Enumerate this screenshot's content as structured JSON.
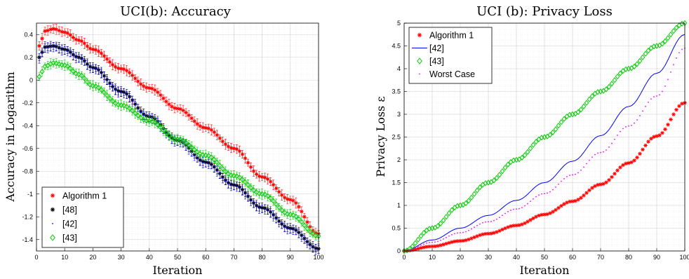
{
  "chart_data": [
    {
      "type": "line",
      "title": "UCI(b): Accuracy",
      "xlabel": "Iteration",
      "ylabel": "Accuracy in Logarithm",
      "xlim": [
        0,
        100
      ],
      "ylim": [
        -1.5,
        0.5
      ],
      "xticks": [
        "0",
        "10",
        "20",
        "30",
        "40",
        "50",
        "60",
        "70",
        "80",
        "90",
        "100"
      ],
      "yticks": [
        "0.4",
        "0.2",
        "0",
        "-0.2",
        "-0.4",
        "-0.6",
        "-0.8",
        "-1",
        "-1.2",
        "-1.4"
      ],
      "grid": true,
      "legend_position": "bottom-left",
      "error_bars": true,
      "series": [
        {
          "name": "Algorithm 1",
          "marker": "asterisk",
          "color": "#ff0000",
          "x": [
            1,
            3,
            6,
            10,
            15,
            20,
            30,
            40,
            50,
            60,
            70,
            80,
            90,
            100
          ],
          "y": [
            0.3,
            0.43,
            0.45,
            0.42,
            0.35,
            0.27,
            0.1,
            -0.07,
            -0.25,
            -0.42,
            -0.6,
            -0.85,
            -1.05,
            -1.35
          ]
        },
        {
          "name": "[48]",
          "marker": "asterisk",
          "color": "#000000",
          "x": [
            1,
            3,
            6,
            10,
            15,
            20,
            30,
            40,
            50,
            60,
            70,
            80,
            90,
            100
          ],
          "y": [
            0.2,
            0.29,
            0.3,
            0.27,
            0.2,
            0.11,
            -0.1,
            -0.32,
            -0.53,
            -0.72,
            -0.92,
            -1.12,
            -1.3,
            -1.48
          ]
        },
        {
          "name": "[42]",
          "marker": "dot",
          "color": "#0000ff",
          "x": [
            1,
            3,
            6,
            10,
            15,
            20,
            30,
            40,
            50,
            60,
            70,
            80,
            90,
            100
          ],
          "y": [
            0.19,
            0.28,
            0.29,
            0.26,
            0.19,
            0.1,
            -0.11,
            -0.33,
            -0.54,
            -0.73,
            -0.93,
            -1.13,
            -1.31,
            -1.49
          ]
        },
        {
          "name": "[43]",
          "marker": "diamond",
          "color": "#00cc00",
          "x": [
            1,
            3,
            6,
            10,
            15,
            20,
            30,
            40,
            50,
            60,
            70,
            80,
            90,
            100
          ],
          "y": [
            0.03,
            0.12,
            0.15,
            0.13,
            0.05,
            -0.05,
            -0.22,
            -0.36,
            -0.52,
            -0.66,
            -0.84,
            -1.0,
            -1.18,
            -1.37
          ]
        }
      ]
    },
    {
      "type": "line",
      "title": "UCI (b): Privacy Loss",
      "xlabel": "Iteration",
      "ylabel": "Privacy Loss ε",
      "xlim": [
        0,
        100
      ],
      "ylim": [
        0,
        5
      ],
      "xticks": [
        "0",
        "10",
        "20",
        "30",
        "40",
        "50",
        "60",
        "70",
        "80",
        "90",
        "100"
      ],
      "yticks": [
        "0",
        "0.5",
        "1",
        "1.5",
        "2",
        "2.5",
        "3",
        "3.5",
        "4",
        "4.5",
        "5"
      ],
      "grid": true,
      "legend_position": "top-left",
      "series": [
        {
          "name": "Algorithm 1",
          "marker": "asterisk",
          "color": "#ff0000",
          "x": [
            0,
            10,
            20,
            30,
            40,
            50,
            60,
            70,
            80,
            90,
            100
          ],
          "y": [
            0,
            0.1,
            0.22,
            0.38,
            0.56,
            0.8,
            1.09,
            1.46,
            1.93,
            2.52,
            3.25
          ]
        },
        {
          "name": "[42]",
          "marker": "line",
          "color": "#0000ff",
          "x": [
            0,
            10,
            20,
            30,
            40,
            50,
            60,
            70,
            80,
            90,
            100
          ],
          "y": [
            0,
            0.24,
            0.5,
            0.78,
            1.11,
            1.5,
            1.97,
            2.53,
            3.17,
            3.9,
            4.75
          ]
        },
        {
          "name": "[43]",
          "marker": "diamond",
          "color": "#00cc00",
          "x": [
            0,
            10,
            20,
            30,
            40,
            50,
            60,
            70,
            80,
            90,
            100
          ],
          "y": [
            0,
            0.5,
            1.0,
            1.5,
            2.0,
            2.5,
            3.0,
            3.5,
            4.0,
            4.5,
            5.0
          ]
        },
        {
          "name": "Worst Case",
          "marker": "dot",
          "color": "#ff00ff",
          "x": [
            0,
            10,
            20,
            30,
            40,
            50,
            60,
            70,
            80,
            90,
            100
          ],
          "y": [
            0,
            0.19,
            0.4,
            0.64,
            0.92,
            1.26,
            1.67,
            2.16,
            2.74,
            3.4,
            4.45
          ]
        }
      ]
    }
  ]
}
